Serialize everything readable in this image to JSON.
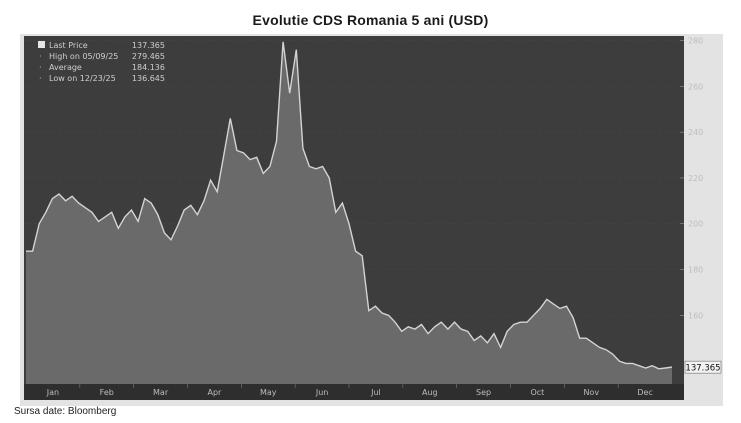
{
  "title": "Evolutie CDS Romania 5 ani (USD)",
  "source": "Sursa date: Bloomberg",
  "colors": {
    "plot_bg": "#3d3d3d",
    "area_fill": "#6f6f6f",
    "line": "#d4d4d4",
    "axis_bg": "#2e2e2e",
    "frame": "#e3e3e3"
  },
  "chart_data": {
    "type": "area",
    "title": "Evolutie CDS Romania 5 ani (USD)",
    "xlabel": "",
    "ylabel": "",
    "ylim": [
      130,
      282
    ],
    "x_ticks": [
      "Jan",
      "Feb",
      "Mar",
      "Apr",
      "May",
      "Jun",
      "Jul",
      "Aug",
      "Sep",
      "Oct",
      "Nov",
      "Dec"
    ],
    "y_ticks": [
      160,
      180,
      200,
      220,
      240,
      260,
      280
    ],
    "grid": true,
    "legend_position": "top-left",
    "legend": [
      {
        "label": "Last Price",
        "value": "137.365"
      },
      {
        "label": "High on 05/09/25",
        "value": "279.465"
      },
      {
        "label": "Average",
        "value": "184.136"
      },
      {
        "label": "Low on 12/23/25",
        "value": "136.645"
      }
    ],
    "last_value_label": "137.365",
    "series": [
      {
        "values": [
          188,
          188,
          200,
          205,
          211,
          213,
          210,
          212,
          209,
          207,
          205,
          201,
          203,
          205,
          198,
          203,
          206,
          201,
          211,
          209,
          204,
          196,
          193,
          199,
          206,
          208,
          204,
          210,
          219,
          214,
          230,
          246,
          232,
          231,
          228,
          229,
          222,
          225,
          236,
          279.465,
          257,
          276,
          233,
          225,
          224,
          225,
          220,
          205,
          209,
          200,
          188,
          186,
          162,
          164,
          161,
          160,
          157,
          153,
          155,
          154,
          156,
          152,
          155,
          157,
          154,
          157,
          154,
          153,
          149,
          151,
          148,
          152,
          146,
          153,
          156,
          157,
          157,
          160,
          163,
          167,
          165,
          163,
          164,
          159,
          150,
          150,
          148,
          146,
          145,
          143,
          140,
          139,
          139,
          138,
          137,
          138,
          136.645,
          137,
          137.365
        ]
      }
    ]
  }
}
